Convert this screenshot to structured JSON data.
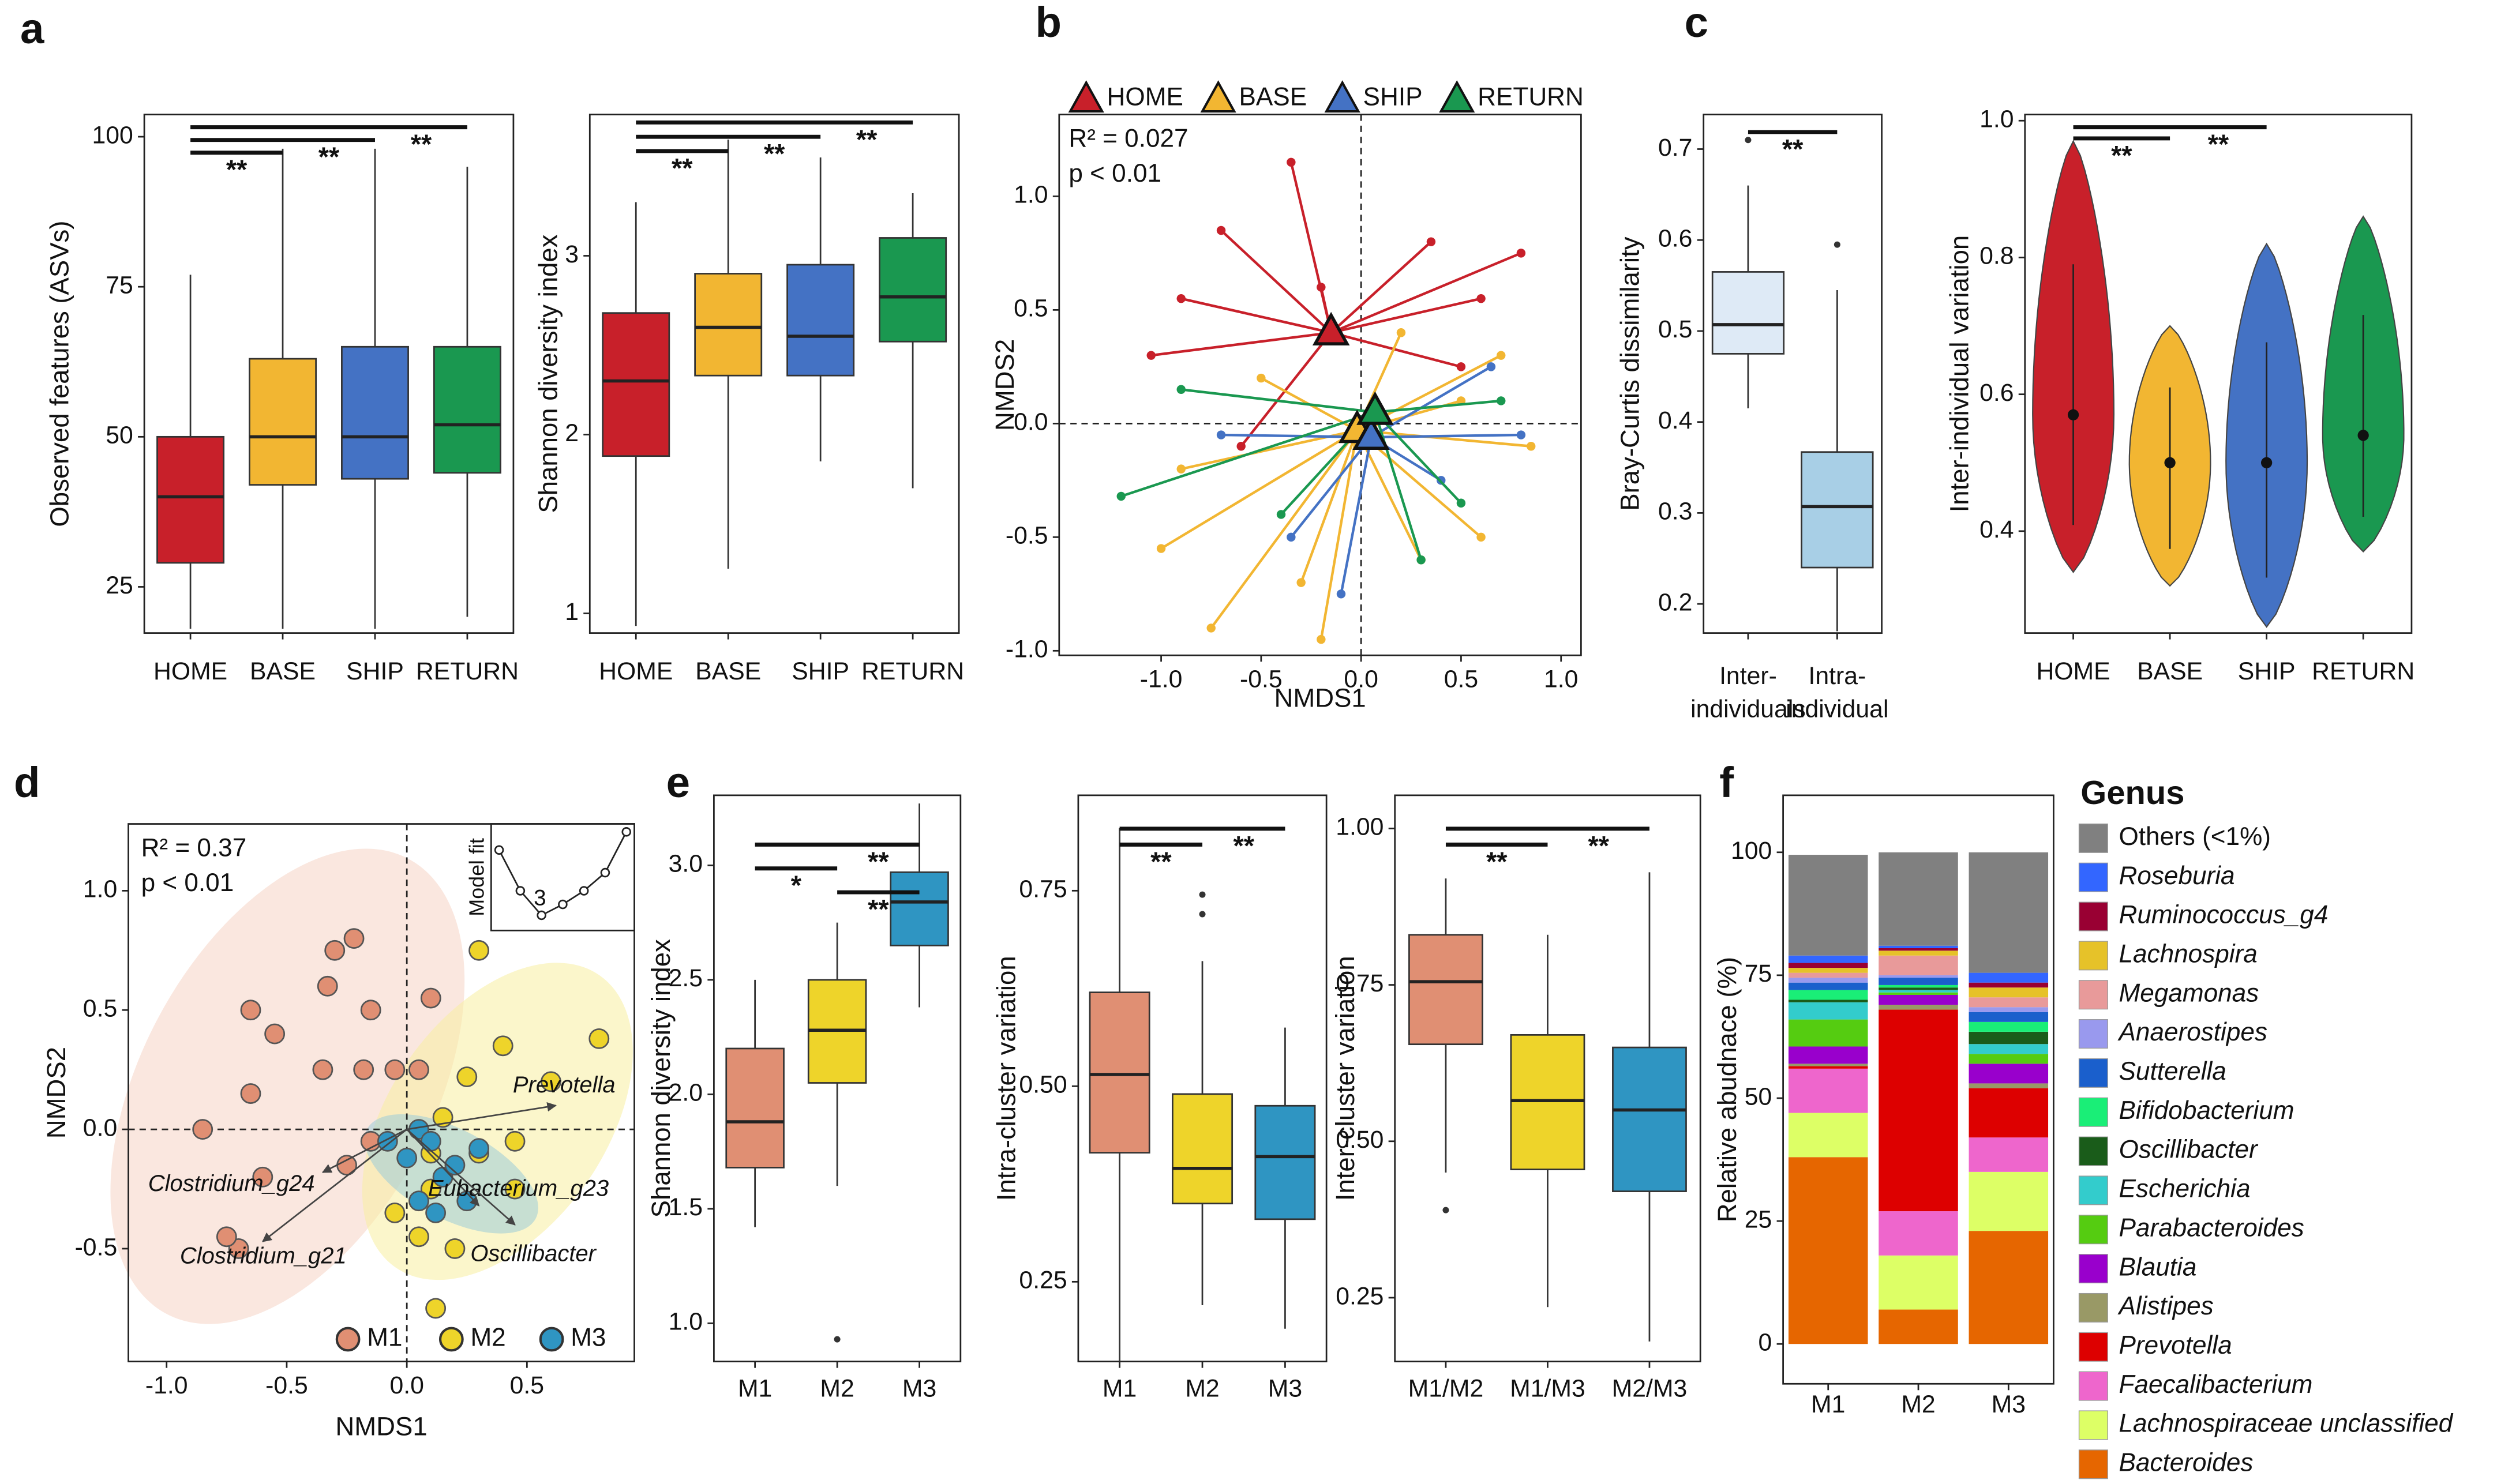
{
  "chart_data": [
    {
      "type": "box",
      "panel": "a",
      "ylabel": "Observed features (ASVs)",
      "categories": [
        "HOME",
        "BASE",
        "SHIP",
        "RETURN"
      ],
      "colors": [
        "#c8202a",
        "#f2b632",
        "#4472c4",
        "#1a9850"
      ],
      "boxes": [
        {
          "min": 18,
          "q1": 29,
          "median": 40,
          "q3": 50,
          "max": 77
        },
        {
          "min": 18,
          "q1": 42,
          "median": 50,
          "q3": 63,
          "max": 98
        },
        {
          "min": 18,
          "q1": 43,
          "median": 50,
          "q3": 65,
          "max": 98
        },
        {
          "min": 20,
          "q1": 44,
          "median": 52,
          "q3": 65,
          "max": 95
        }
      ],
      "ylim": [
        17.3,
        103.7
      ],
      "yticks": [
        25,
        50,
        75,
        100
      ],
      "brackets": [
        {
          "from": 0,
          "to": 3,
          "label": "**"
        },
        {
          "from": 0,
          "to": 2,
          "label": "**"
        },
        {
          "from": 0,
          "to": 1,
          "label": "**"
        }
      ]
    },
    {
      "type": "box",
      "ylabel": "Shannon diversity index",
      "categories": [
        "HOME",
        "BASE",
        "SHIP",
        "RETURN"
      ],
      "colors": [
        "#c8202a",
        "#f2b632",
        "#4472c4",
        "#1a9850"
      ],
      "boxes": [
        {
          "min": 0.93,
          "q1": 1.88,
          "median": 2.3,
          "q3": 2.68,
          "max": 3.3
        },
        {
          "min": 1.25,
          "q1": 2.33,
          "median": 2.6,
          "q3": 2.9,
          "max": 3.65
        },
        {
          "min": 1.85,
          "q1": 2.33,
          "median": 2.55,
          "q3": 2.95,
          "max": 3.55
        },
        {
          "min": 1.7,
          "q1": 2.52,
          "median": 2.77,
          "q3": 3.1,
          "max": 3.35
        }
      ],
      "ylim": [
        0.89,
        3.79
      ],
      "yticks": [
        1,
        2,
        3
      ],
      "brackets": [
        {
          "from": 0,
          "to": 3,
          "label": "**"
        },
        {
          "from": 0,
          "to": 2,
          "label": "**"
        },
        {
          "from": 0,
          "to": 1,
          "label": "**"
        }
      ]
    },
    {
      "type": "nmds",
      "panel": "b",
      "xlabel": "NMDS1",
      "ylabel": "NMDS2",
      "annotations": [
        "R² = 0.027",
        "p < 0.01"
      ],
      "xlim": [
        -1.51,
        1.1
      ],
      "ylim": [
        -1.02,
        1.36
      ],
      "xticks": [
        {
          "value": -1,
          "label": "-1.0"
        },
        -0.5,
        {
          "value": 0,
          "label": "0.0"
        },
        0.5,
        {
          "value": 1,
          "label": "1.0"
        }
      ],
      "yticks": [
        {
          "value": -1,
          "label": "-1.0"
        },
        -0.5,
        {
          "value": 0,
          "label": "0.0"
        },
        0.5,
        {
          "value": 1,
          "label": "1.0"
        }
      ],
      "series": [
        {
          "name": "HOME",
          "color": "#c8202a",
          "centroid": [
            -0.15,
            0.4
          ],
          "x": [
            -0.7,
            -0.35,
            0.35,
            -1.05,
            -0.9,
            0.6,
            -0.6,
            0.8,
            -0.2,
            0.5
          ],
          "y": [
            0.85,
            1.15,
            0.8,
            0.3,
            0.55,
            0.55,
            -0.1,
            0.75,
            0.6,
            0.25
          ]
        },
        {
          "name": "BASE",
          "color": "#f2b632",
          "centroid": [
            -0.02,
            -0.03
          ],
          "x": [
            -1.0,
            -0.75,
            0.7,
            0.6,
            -0.3,
            0.3,
            -0.9,
            0.85,
            -0.5,
            0.2,
            -0.2,
            0.5
          ],
          "y": [
            -0.55,
            -0.9,
            0.3,
            -0.5,
            -0.7,
            -0.6,
            -0.2,
            -0.1,
            0.2,
            0.4,
            -0.95,
            0.1
          ]
        },
        {
          "name": "SHIP",
          "color": "#4472c4",
          "centroid": [
            0.05,
            -0.06
          ],
          "x": [
            0.65,
            -0.35,
            0.4,
            -0.1,
            0.8,
            -0.7
          ],
          "y": [
            0.25,
            -0.5,
            -0.25,
            -0.75,
            -0.05,
            -0.05
          ]
        },
        {
          "name": "RETURN",
          "color": "#1a9850",
          "centroid": [
            0.07,
            0.05
          ],
          "x": [
            -1.2,
            -0.9,
            0.3,
            0.7,
            -0.4,
            0.5
          ],
          "y": [
            -0.32,
            0.15,
            -0.6,
            0.1,
            -0.4,
            -0.35
          ]
        }
      ]
    },
    {
      "type": "box",
      "panel": "c",
      "ylabel": "Bray-Curtis dissimilarity",
      "categories": [
        "Inter-\nindividuals",
        "Intra-\nindividual"
      ],
      "colors": [
        "#deeaf6",
        "#a8cfe6"
      ],
      "boxes": [
        {
          "min": 0.415,
          "q1": 0.475,
          "median": 0.507,
          "q3": 0.565,
          "max": 0.66,
          "outliers": [
            0.71
          ]
        },
        {
          "min": 0.17,
          "q1": 0.24,
          "median": 0.307,
          "q3": 0.367,
          "max": 0.545,
          "outliers": [
            0.595
          ]
        }
      ],
      "ylim": [
        0.168,
        0.738
      ],
      "yticks": [
        0.2,
        0.3,
        0.4,
        0.5,
        0.6,
        0.7
      ],
      "brackets": [
        {
          "from": 0,
          "to": 1,
          "label": "**"
        }
      ]
    },
    {
      "type": "violin",
      "ylabel": "Inter-individual variation",
      "categories": [
        "HOME",
        "BASE",
        "SHIP",
        "RETURN"
      ],
      "colors": [
        "#c8202a",
        "#f2b632",
        "#4472c4",
        "#1a9850"
      ],
      "violins": [
        {
          "min": 0.34,
          "median": 0.57,
          "max": 0.97
        },
        {
          "min": 0.32,
          "median": 0.5,
          "max": 0.7
        },
        {
          "min": 0.26,
          "median": 0.5,
          "max": 0.82
        },
        {
          "min": 0.37,
          "median": 0.54,
          "max": 0.86
        }
      ],
      "ylim": [
        0.251,
        1.009
      ],
      "yticks": [
        0.4,
        0.6,
        0.8,
        {
          "value": 1,
          "label": "1.0"
        }
      ],
      "brackets": [
        {
          "from": 0,
          "to": 2,
          "label": "**"
        },
        {
          "from": 0,
          "to": 1,
          "label": "**"
        }
      ]
    },
    {
      "type": "biplot",
      "panel": "d",
      "xlabel": "NMDS1",
      "ylabel": "NMDS2",
      "annotations": [
        "R² = 0.37",
        "p < 0.01"
      ],
      "xlim": [
        -1.159,
        0.947
      ],
      "ylim": [
        -0.973,
        1.28
      ],
      "xticks": [
        {
          "value": -1,
          "label": "-1.0"
        },
        -0.5,
        {
          "value": 0,
          "label": "0.0"
        },
        0.5
      ],
      "yticks": [
        -0.5,
        {
          "value": 0,
          "label": "0.0"
        },
        0.5,
        {
          "value": 1,
          "label": "1.0"
        }
      ],
      "series": [
        {
          "name": "M1",
          "color": "#e08f73",
          "x": [
            -0.3,
            -0.22,
            -0.33,
            -0.15,
            0.1,
            -0.65,
            -0.55,
            -0.35,
            -0.18,
            -0.05,
            0.05,
            -0.65,
            -0.85,
            -0.6,
            -0.25,
            -0.7,
            -0.75,
            -0.15
          ],
          "y": [
            0.75,
            0.8,
            0.6,
            0.5,
            0.55,
            0.5,
            0.4,
            0.25,
            0.25,
            0.25,
            0.25,
            0.15,
            0.0,
            -0.2,
            -0.15,
            -0.5,
            -0.45,
            -0.05
          ]
        },
        {
          "name": "M2",
          "color": "#eed42a",
          "x": [
            0.3,
            0.8,
            0.4,
            0.6,
            0.25,
            0.15,
            0.45,
            0.3,
            0.1,
            0.05,
            0.2,
            0.45,
            0.1,
            -0.05,
            0.12
          ],
          "y": [
            0.75,
            0.38,
            0.35,
            0.2,
            0.22,
            0.05,
            -0.05,
            -0.1,
            -0.25,
            -0.45,
            -0.5,
            -0.25,
            -0.1,
            -0.35,
            -0.75
          ]
        },
        {
          "name": "M3",
          "color": "#2f95c2",
          "x": [
            0.05,
            0.1,
            0.0,
            0.15,
            0.2,
            0.25,
            0.12,
            0.3,
            -0.08,
            0.05
          ],
          "y": [
            0.0,
            -0.05,
            -0.12,
            -0.2,
            -0.15,
            -0.3,
            -0.35,
            -0.08,
            -0.05,
            -0.3
          ]
        }
      ],
      "vectors": [
        {
          "label": "Prevotella",
          "x": 0.62,
          "y": 0.1
        },
        {
          "label": "Clostridium_g24",
          "x": -0.35,
          "y": -0.18
        },
        {
          "label": "Clostridium_g21",
          "x": -0.6,
          "y": -0.47
        },
        {
          "label": "Eubacterium_g23",
          "x": 0.3,
          "y": -0.32
        },
        {
          "label": "Oscillibacter",
          "x": 0.45,
          "y": -0.4
        }
      ],
      "inset": {
        "ylabel": "Model fit",
        "label": "3",
        "values": [
          0.8,
          0.35,
          0.08,
          0.2,
          0.35,
          0.55,
          1
        ]
      }
    },
    {
      "type": "box",
      "panel": "e",
      "ylabel": "Shannon diversity index",
      "categories": [
        "M1",
        "M2",
        "M3"
      ],
      "colors": [
        "#e08f73",
        "#eed42a",
        "#2f95c2"
      ],
      "boxes": [
        {
          "min": 1.42,
          "q1": 1.68,
          "median": 1.88,
          "q3": 2.2,
          "max": 2.5
        },
        {
          "min": 1.6,
          "q1": 2.05,
          "median": 2.28,
          "q3": 2.5,
          "max": 2.75,
          "outliers": [
            0.93
          ]
        },
        {
          "min": 2.38,
          "q1": 2.65,
          "median": 2.84,
          "q3": 2.97,
          "max": 3.27
        }
      ],
      "ylim": [
        0.833,
        3.306
      ],
      "yticks": [
        {
          "value": 1,
          "label": "1.0"
        },
        1.5,
        {
          "value": 2,
          "label": "2.0"
        },
        2.5,
        {
          "value": 3,
          "label": "3.0"
        }
      ],
      "brackets": [
        {
          "from": 0,
          "to": 2,
          "label": "**"
        },
        {
          "from": 0,
          "to": 1,
          "label": "*"
        },
        {
          "from": 1,
          "to": 2,
          "label": "**"
        }
      ]
    },
    {
      "type": "box",
      "ylabel": "Intra-cluster variation",
      "categories": [
        "M1",
        "M2",
        "M3"
      ],
      "colors": [
        "#e08f73",
        "#eed42a",
        "#2f95c2"
      ],
      "boxes": [
        {
          "min": 0.14,
          "q1": 0.415,
          "median": 0.515,
          "q3": 0.62,
          "max": 0.83
        },
        {
          "min": 0.22,
          "q1": 0.35,
          "median": 0.395,
          "q3": 0.49,
          "max": 0.66,
          "outliers": [
            0.72,
            0.745
          ]
        },
        {
          "min": 0.19,
          "q1": 0.33,
          "median": 0.41,
          "q3": 0.475,
          "max": 0.575
        }
      ],
      "ylim": [
        0.148,
        0.872
      ],
      "yticks": [
        0.25,
        {
          "value": 0.5,
          "label": "0.50"
        },
        0.75
      ],
      "brackets": [
        {
          "from": 0,
          "to": 2,
          "label": "**"
        },
        {
          "from": 0,
          "to": 1,
          "label": "**"
        }
      ]
    },
    {
      "type": "box",
      "ylabel": "Inter-cluster variation",
      "categories": [
        "M1/M2",
        "M1/M3",
        "M2/M3"
      ],
      "colors": [
        "#e08f73",
        "#eed42a",
        "#2f95c2"
      ],
      "boxes": [
        {
          "min": 0.45,
          "q1": 0.655,
          "median": 0.755,
          "q3": 0.83,
          "max": 0.92,
          "outliers": [
            0.39
          ]
        },
        {
          "min": 0.235,
          "q1": 0.455,
          "median": 0.565,
          "q3": 0.67,
          "max": 0.83
        },
        {
          "min": 0.18,
          "q1": 0.42,
          "median": 0.55,
          "q3": 0.65,
          "max": 0.93
        }
      ],
      "ylim": [
        0.148,
        1.053
      ],
      "yticks": [
        0.25,
        {
          "value": 0.5,
          "label": "0.50"
        },
        0.75,
        {
          "value": 1,
          "label": "1.00"
        }
      ],
      "brackets": [
        {
          "from": 0,
          "to": 2,
          "label": "**"
        },
        {
          "from": 0,
          "to": 1,
          "label": "**"
        }
      ]
    },
    {
      "type": "stacked_bar",
      "panel": "f",
      "ylabel": "Relative abudnace (%)",
      "legend_title": "Genus",
      "categories": [
        "M1",
        "M2",
        "M3"
      ],
      "ylim": [
        -8.1,
        111.6
      ],
      "yticks": [
        0,
        25,
        50,
        75,
        100
      ],
      "series": [
        {
          "name": "Others (<1%)",
          "color": "#808080",
          "values": [
            20.5,
            19,
            24.5
          ]
        },
        {
          "name": "Roseburia",
          "color": "#3366ff",
          "values": [
            1.5,
            0.5,
            2
          ]
        },
        {
          "name": "Ruminococcus_g4",
          "color": "#990033",
          "values": [
            1,
            0.5,
            1
          ]
        },
        {
          "name": "Lachnospira",
          "color": "#e6c229",
          "values": [
            1,
            1,
            2
          ]
        },
        {
          "name": "Megamonas",
          "color": "#e89a9a",
          "values": [
            1,
            4,
            2
          ]
        },
        {
          "name": "Anaerostipes",
          "color": "#9999ee",
          "values": [
            1,
            0.5,
            1
          ]
        },
        {
          "name": "Sutterella",
          "color": "#1a5fcc",
          "values": [
            1.5,
            1.5,
            2
          ]
        },
        {
          "name": "Bifidobacterium",
          "color": "#1aee77",
          "values": [
            2,
            0.5,
            2
          ]
        },
        {
          "name": "Oscillibacter",
          "color": "#1a5c1a",
          "values": [
            0.5,
            0.5,
            2.5
          ]
        },
        {
          "name": "Escherichia",
          "color": "#33cccc",
          "values": [
            3.5,
            0.5,
            2
          ]
        },
        {
          "name": "Parabacteroides",
          "color": "#55cc11",
          "values": [
            5.5,
            0.5,
            2
          ]
        },
        {
          "name": "Blautia",
          "color": "#9900cc",
          "values": [
            3.5,
            2,
            4
          ]
        },
        {
          "name": "Alistipes",
          "color": "#999966",
          "values": [
            0.5,
            1,
            1
          ]
        },
        {
          "name": "Prevotella",
          "color": "#dd0000",
          "values": [
            0.5,
            41,
            10
          ]
        },
        {
          "name": "Faecalibacterium",
          "color": "#ee66cc",
          "values": [
            9,
            9,
            7
          ]
        },
        {
          "name": "Lachnospiraceae unclassified",
          "color": "#ddff66",
          "values": [
            9,
            11,
            12
          ]
        },
        {
          "name": "Bacteroides",
          "color": "#e66600",
          "values": [
            38,
            7,
            23
          ]
        }
      ]
    }
  ]
}
